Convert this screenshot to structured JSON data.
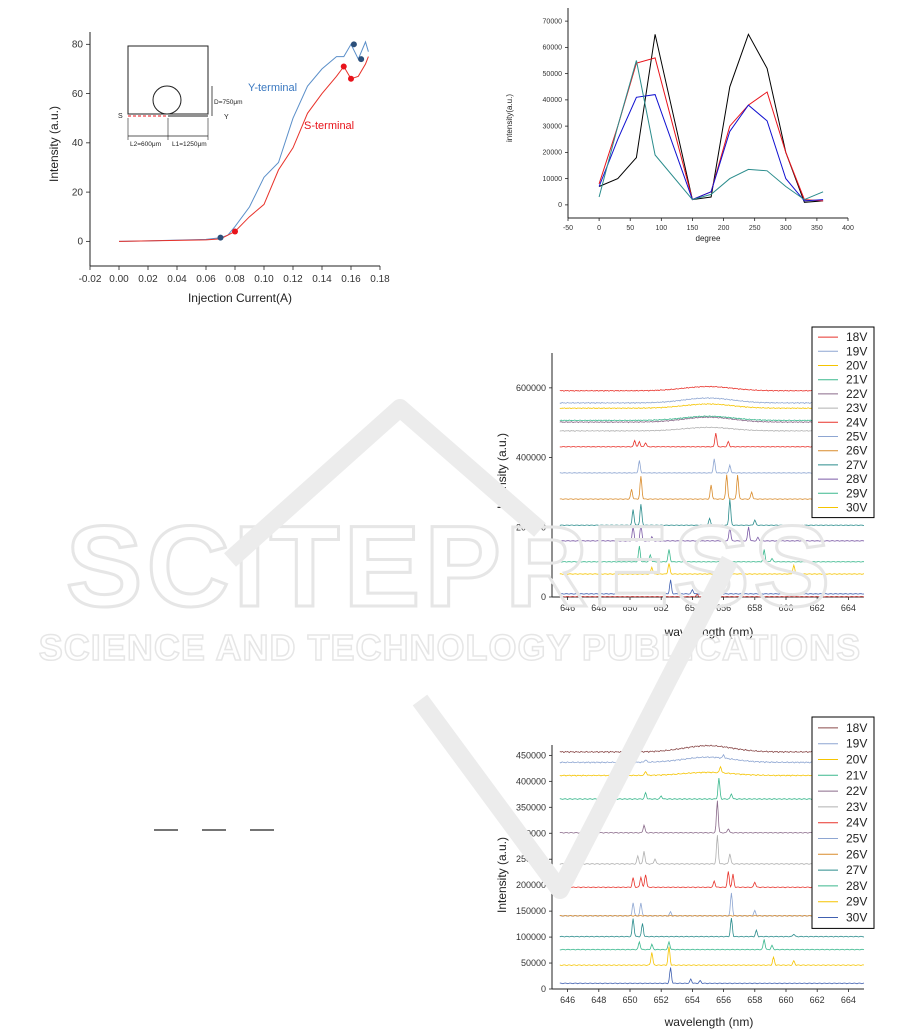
{
  "watermark": {
    "line1": "SCITEPRESS",
    "line2": "SCIENCE AND TECHNOLOGY PUBLICATIONS"
  },
  "chart_data": [
    {
      "id": "injection",
      "type": "line",
      "xlabel": "Injection Current(A)",
      "ylabel": "Intensity (a.u.)",
      "xlim": [
        -0.02,
        0.18
      ],
      "ylim": [
        -10,
        85
      ],
      "xticks": [
        "-0.02",
        "0.00",
        "0.02",
        "0.04",
        "0.06",
        "0.08",
        "0.10",
        "0.12",
        "0.14",
        "0.16",
        "0.18"
      ],
      "yticks": [
        "0",
        "20",
        "40",
        "60",
        "80"
      ],
      "series": [
        {
          "name": "Y-terminal",
          "color": "#5b8fc9",
          "x": [
            0,
            0.02,
            0.04,
            0.06,
            0.07,
            0.075,
            0.08,
            0.09,
            0.1,
            0.11,
            0.12,
            0.13,
            0.14,
            0.15,
            0.155,
            0.16,
            0.165,
            0.17,
            0.172
          ],
          "y": [
            0,
            0.2,
            0.5,
            0.8,
            1.5,
            2.5,
            6,
            14,
            26,
            32,
            50,
            63,
            70,
            75,
            75,
            80,
            74,
            81,
            77
          ]
        },
        {
          "name": "S-terminal",
          "color": "#e8322a",
          "x": [
            0,
            0.02,
            0.04,
            0.06,
            0.07,
            0.08,
            0.09,
            0.1,
            0.11,
            0.12,
            0.13,
            0.14,
            0.15,
            0.155,
            0.16,
            0.165,
            0.17,
            0.172
          ],
          "y": [
            0,
            0.2,
            0.4,
            0.6,
            1,
            4,
            10,
            15,
            29,
            38,
            52,
            60,
            67,
            71,
            66,
            67,
            72,
            75
          ]
        }
      ],
      "markers": [
        {
          "x": 0.07,
          "y": 1.5,
          "color": "#2b4f7a"
        },
        {
          "x": 0.08,
          "y": 4,
          "color": "#e8131b"
        },
        {
          "x": 0.155,
          "y": 71,
          "color": "#e8131b"
        },
        {
          "x": 0.16,
          "y": 66,
          "color": "#e8131b"
        },
        {
          "x": 0.162,
          "y": 80,
          "color": "#2b4f7a"
        },
        {
          "x": 0.167,
          "y": 74,
          "color": "#2b4f7a"
        }
      ],
      "inset": {
        "d_label": "D=750μm",
        "l2_label": "L2=600μm",
        "l1_label": "L1=1250μm",
        "s_label": "S",
        "y_label": "Y"
      }
    },
    {
      "id": "degree",
      "type": "line",
      "xlabel": "degree",
      "ylabel": "intensity(a.u.)",
      "xlim": [
        -50,
        400
      ],
      "ylim": [
        -5000,
        75000
      ],
      "xticks": [
        "-50",
        "0",
        "50",
        "100",
        "150",
        "200",
        "250",
        "300",
        "350",
        "400"
      ],
      "yticks": [
        "0",
        "10000",
        "20000",
        "30000",
        "40000",
        "50000",
        "60000",
        "70000"
      ],
      "x": [
        0,
        30,
        60,
        90,
        150,
        180,
        210,
        240,
        270,
        300,
        330,
        360
      ],
      "series": [
        {
          "color": "#000000",
          "values": [
            7000,
            10000,
            18000,
            65000,
            2000,
            3000,
            45000,
            65000,
            52000,
            20000,
            1000,
            1500
          ]
        },
        {
          "color": "#e8131b",
          "values": [
            8000,
            30000,
            54000,
            56000,
            2000,
            5000,
            30000,
            38000,
            43000,
            20000,
            2000,
            1500
          ]
        },
        {
          "color": "#1010d0",
          "values": [
            7000,
            25000,
            41000,
            42000,
            2000,
            5000,
            28000,
            38000,
            32000,
            10000,
            1500,
            2000
          ]
        },
        {
          "color": "#2a8c8c",
          "values": [
            3000,
            30000,
            55000,
            19000,
            2000,
            4000,
            10000,
            13500,
            13000,
            7000,
            2000,
            5000
          ]
        }
      ]
    },
    {
      "id": "spectrum1",
      "type": "line",
      "xlabel": "wavelength (nm)",
      "ylabel": "Intensity (a.u.)",
      "xlim": [
        645,
        665
      ],
      "ylim": [
        0,
        700000
      ],
      "xticks": [
        "646",
        "648",
        "650",
        "652",
        "654",
        "656",
        "658",
        "660",
        "662",
        "664"
      ],
      "yticks": [
        "0",
        "200000",
        "400000",
        "600000"
      ],
      "series": [
        {
          "name": "18V",
          "color": "#e8322a",
          "offset": 590000,
          "peaks": [],
          "hump": 12000
        },
        {
          "name": "19V",
          "color": "#8ea6d2",
          "offset": 555000,
          "peaks": [],
          "hump": 14000
        },
        {
          "name": "20V",
          "color": "#f5c400",
          "offset": 540000,
          "peaks": [],
          "hump": 12000
        },
        {
          "name": "21V",
          "color": "#3bb88e",
          "offset": 505000,
          "peaks": [],
          "hump": 12000
        },
        {
          "name": "22V",
          "color": "#8a6a8a",
          "offset": 500000,
          "peaks": [],
          "hump": 14000
        },
        {
          "name": "23V",
          "color": "#b0b0b0",
          "offset": 475000,
          "peaks": [],
          "hump": 10000
        },
        {
          "name": "24V",
          "color": "#e8322a",
          "offset": 430000,
          "peaks": [
            [
              650.3,
              18000
            ],
            [
              650.6,
              15000
            ],
            [
              651,
              12000
            ],
            [
              655.5,
              40000
            ],
            [
              656.3,
              15000
            ]
          ],
          "hump": 0
        },
        {
          "name": "25V",
          "color": "#8ea6d2",
          "offset": 355000,
          "peaks": [
            [
              650.6,
              35000
            ],
            [
              655.4,
              40000
            ],
            [
              656.4,
              22000
            ]
          ],
          "hump": 0
        },
        {
          "name": "26V",
          "color": "#d98b2b",
          "offset": 280000,
          "peaks": [
            [
              650.1,
              28000
            ],
            [
              650.7,
              65000
            ],
            [
              655.2,
              40000
            ],
            [
              656.2,
              70000
            ],
            [
              656.9,
              70000
            ],
            [
              657.8,
              20000
            ]
          ],
          "hump": 0
        },
        {
          "name": "27V",
          "color": "#2a8c8c",
          "offset": 205000,
          "peaks": [
            [
              650.2,
              45000
            ],
            [
              650.7,
              60000
            ],
            [
              655.1,
              20000
            ],
            [
              656.4,
              75000
            ],
            [
              658,
              15000
            ]
          ],
          "hump": 0
        },
        {
          "name": "28V",
          "color": "#7b5aa6",
          "offset": 160000,
          "peaks": [
            [
              650.2,
              40000
            ],
            [
              650.7,
              45000
            ],
            [
              651.4,
              12000
            ],
            [
              656.4,
              40000
            ],
            [
              657.6,
              40000
            ],
            [
              658.2,
              10000
            ]
          ],
          "hump": 0
        },
        {
          "name": "29V",
          "color": "#3bb88e",
          "offset": 100000,
          "peaks": [
            [
              650.6,
              45000
            ],
            [
              651.3,
              20000
            ],
            [
              652.5,
              35000
            ],
            [
              658.6,
              35000
            ],
            [
              659.1,
              10000
            ]
          ],
          "hump": 0
        },
        {
          "name": "30V",
          "color": "#f5c400",
          "offset": 65000,
          "peaks": [
            [
              651.4,
              20000
            ],
            [
              652.5,
              30000
            ],
            [
              660.5,
              25000
            ]
          ],
          "hump": 0
        },
        {
          "name": "",
          "color": "#4060b0",
          "offset": 8000,
          "peaks": [
            [
              652.6,
              40000
            ],
            [
              654,
              12000
            ],
            [
              654.8,
              8000
            ]
          ],
          "hump": 0
        },
        {
          "name": "",
          "color": "#c03030",
          "offset": 0,
          "peaks": [
            [
              654.3,
              6000
            ]
          ],
          "hump": 0
        }
      ]
    },
    {
      "id": "spectrum2",
      "type": "line",
      "xlabel": "wavelength (nm)",
      "ylabel": "Intensity (a.u.)",
      "xlim": [
        645,
        665
      ],
      "ylim": [
        0,
        470000
      ],
      "xticks": [
        "646",
        "648",
        "650",
        "652",
        "654",
        "656",
        "658",
        "660",
        "662",
        "664"
      ],
      "yticks": [
        "0",
        "50000",
        "100000",
        "150000",
        "200000",
        "250000",
        "300000",
        "350000",
        "400000",
        "450000"
      ],
      "series": [
        {
          "name": "18V",
          "color": "#8a4a4a",
          "offset": 455000,
          "peaks": [],
          "hump": 12000
        },
        {
          "name": "19V",
          "color": "#8ea6d2",
          "offset": 435000,
          "peaks": [
            [
              651,
              5000
            ],
            [
              656,
              6000
            ]
          ],
          "hump": 10000
        },
        {
          "name": "20V",
          "color": "#f5c400",
          "offset": 410000,
          "peaks": [
            [
              651,
              8000
            ],
            [
              655.8,
              12000
            ]
          ],
          "hump": 6000
        },
        {
          "name": "21V",
          "color": "#3bb88e",
          "offset": 365000,
          "peaks": [
            [
              651,
              12000
            ],
            [
              652,
              6000
            ],
            [
              655.7,
              40000
            ],
            [
              656.5,
              10000
            ]
          ],
          "hump": 0
        },
        {
          "name": "22V",
          "color": "#8a6a8a",
          "offset": 300000,
          "peaks": [
            [
              650.9,
              15000
            ],
            [
              655.6,
              62000
            ],
            [
              656.3,
              8000
            ]
          ],
          "hump": 0
        },
        {
          "name": "23V",
          "color": "#b0b0b0",
          "offset": 240000,
          "peaks": [
            [
              650.5,
              15000
            ],
            [
              650.9,
              25000
            ],
            [
              651.6,
              10000
            ],
            [
              655.6,
              55000
            ],
            [
              656.4,
              20000
            ]
          ],
          "hump": 0
        },
        {
          "name": "24V",
          "color": "#e8322a",
          "offset": 195000,
          "peaks": [
            [
              650.2,
              18000
            ],
            [
              650.7,
              20000
            ],
            [
              651,
              25000
            ],
            [
              655.4,
              12000
            ],
            [
              656.3,
              30000
            ],
            [
              656.6,
              25000
            ],
            [
              658,
              10000
            ]
          ],
          "hump": 0
        },
        {
          "name": "25V",
          "color": "#8ea6d2",
          "offset": 140000,
          "peaks": [
            [
              650.2,
              25000
            ],
            [
              650.7,
              25000
            ],
            [
              652.6,
              8000
            ],
            [
              656.5,
              45000
            ],
            [
              658,
              10000
            ]
          ],
          "hump": 0
        },
        {
          "name": "26V",
          "color": "#d98b2b",
          "offset": 140000,
          "peaks": [],
          "hump": 0
        },
        {
          "name": "27V",
          "color": "#2a8c8c",
          "offset": 100000,
          "peaks": [
            [
              650.2,
              35000
            ],
            [
              650.8,
              25000
            ],
            [
              656.5,
              35000
            ],
            [
              658.1,
              12000
            ],
            [
              660.5,
              5000
            ]
          ],
          "hump": 0
        },
        {
          "name": "28V",
          "color": "#3bb88e",
          "offset": 75000,
          "peaks": [
            [
              650.6,
              15000
            ],
            [
              651.4,
              10000
            ],
            [
              652.5,
              15000
            ],
            [
              658.6,
              20000
            ],
            [
              659.1,
              8000
            ]
          ],
          "hump": 0
        },
        {
          "name": "29V",
          "color": "#f5c400",
          "offset": 45000,
          "peaks": [
            [
              651.4,
              25000
            ],
            [
              652.5,
              35000
            ],
            [
              659.2,
              15000
            ],
            [
              660.5,
              8000
            ]
          ],
          "hump": 0
        },
        {
          "name": "30V",
          "color": "#4060b0",
          "offset": 10000,
          "peaks": [
            [
              652.6,
              30000
            ],
            [
              653.9,
              8000
            ],
            [
              654.5,
              5000
            ]
          ],
          "hump": 0
        }
      ]
    }
  ]
}
